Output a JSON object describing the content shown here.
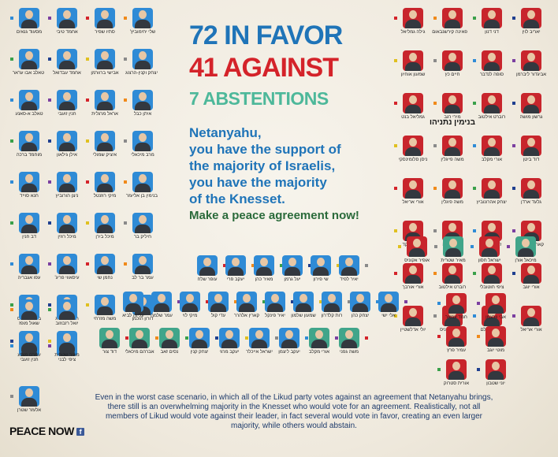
{
  "headline": {
    "favor": "72 IN FAVOR",
    "against": "41 AGAINST",
    "abstentions": "7 ABSTENTIONS"
  },
  "message": {
    "line1": "Netanyahu,",
    "line2": "you have the support of",
    "line3": "the majority of Israelis,",
    "line4": "you have the majority",
    "line5": "of the Knesset.",
    "call_to_action": "Make a peace agreement now!"
  },
  "footer": "Even in the worst case scenario, in which all of the Likud party votes against an agreement that Netanyahu brings, there still is an overwhelming majority in the Knesset who would vote for an agreement. Realistically, not all members of Likud would vote against their leader, in fact several would vote in favor, creating an even larger majority, while others would abstain.",
  "brand": {
    "name": "PEACE NOW",
    "fb_icon": "f"
  },
  "colors": {
    "favor": "#1f74b8",
    "against": "#d4232a",
    "abstain": "#4db89a",
    "party_dots": [
      "#2f8bd6",
      "#7b3fa0",
      "#d4232a",
      "#f08a1a",
      "#3aa04a",
      "#1f3f8f",
      "#e0c020",
      "#8a8a8a"
    ]
  },
  "netanyahu_label": "בנימין נתניהו",
  "members": {
    "favor_left": [
      [
        "מסעוד גנאים",
        "אחמד טיבי",
        "סתיו שפיר",
        "שלי יחימוביץ'"
      ],
      [
        "טאלב אבו עראר",
        "אחמד עבדואל",
        "אבישי ברוורמן",
        "יצחק וקנין-הרצוג"
      ],
      [
        "טאלב א-סאנע",
        "חנין זועבי",
        "אראל מרגלית",
        "איתן כבל"
      ],
      [
        "מוחמד ברכה",
        "אילן גילאון",
        "איציק שמולי",
        "מרב מיכאלי"
      ],
      [
        "חנא סוייד",
        "ניצן הורוביץ",
        "מיקי רוזנטל",
        "בנימין בן אליעזר"
      ],
      [
        "דב חנין",
        "מיכל רוזין",
        "מיכל בירן",
        "חיליק בר"
      ],
      [
        "עפו אגבריה",
        "עיסאווי פריג'",
        "נחמן שי",
        "עמר בר לב"
      ],
      [
        "בסאל גטאס",
        "תמר זנדברג",
        "משה מזרחי",
        "דורון הוכמן"
      ],
      [
        "חנין זועבי",
        "ציפי לבני"
      ]
    ],
    "against_right": [
      [
        "גילה גמליאל",
        "פאינה קירשנבאום",
        "דני דנון",
        "יאריב לוין"
      ],
      [
        "שמעון אוחיון",
        "חיים כץ",
        "סופה לנדבר",
        "אביגדור ליברמן"
      ],
      [
        "גמליאל בנט",
        "מירי רגב",
        "רוברט אילטוב",
        "גרשון מושה"
      ],
      [
        "ניסן סלומינסקי",
        "משה פייגלין",
        "אורי מקלב",
        "דוד ביטן"
      ],
      [
        "אורי אריאל",
        "משה פיגלין",
        "יצחק אהרונוביץ",
        "גלעד ארדן"
      ],
      [
        "איילת שקד",
        "יצחק קונה",
        "זאב אלקין",
        "קארין אלהרר"
      ],
      [
        "אורי אורבך",
        "רוברט אילטוב",
        "ציפי חוטובלי",
        "אורי יוגב"
      ],
      [
        "יולי אדלשטיין",
        "אופיר אקוניס",
        "דוד אמסלם",
        "אורי אריאל"
      ]
    ],
    "abstain_row1": [
      "אופיר אקוניס",
      "מאיר שטרית",
      "ישראל חסון",
      "מיכאל אורן"
    ],
    "center_row1": [
      "עופר שלח",
      "יעקב פרי",
      "מאיר כהן",
      "יעל גרמן",
      "שי פירון",
      "יאיר לפיד"
    ],
    "center_row2": [
      "עליזה לביא",
      "עמר שלמה",
      "מיקי לוי",
      "עדי קול",
      "קארין אלהרר",
      "יאיר פינקל",
      "שמעון שלמון",
      "רות קלדרון",
      "יצחק כהן",
      "אלי ישי"
    ],
    "center_row3": [
      "דוד צור",
      "אברהם מיכאלי",
      "נסים זאב",
      "יצחק קנין",
      "יעקב מרגי",
      "ישראל אייכלר",
      "יעקב ליצמן",
      "אורי מקלב",
      "משה גפני"
    ],
    "left_bottom": [
      "שאול מופז",
      "יואל רזבוזוב",
      "עמרם מצנע",
      "מאיר שטרית",
      "אלעזר שטרן"
    ],
    "right_bottom": [
      "חמד עמאר",
      "אבי וורצמן",
      "עמיר פרץ",
      "מוטי יוגב",
      "אורית סטרוק",
      "יוני שטבון"
    ]
  }
}
